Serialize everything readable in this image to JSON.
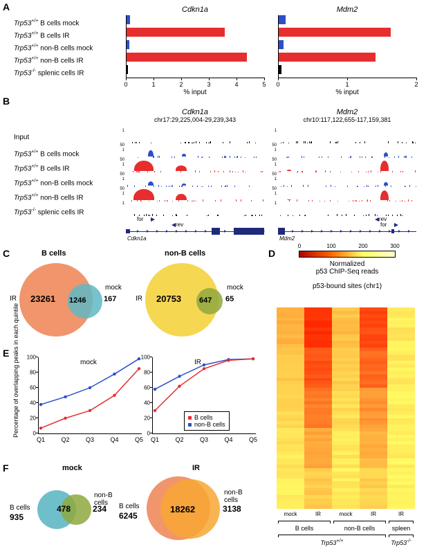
{
  "colors": {
    "red": "#e62e2e",
    "blue": "#2c4fc9",
    "darkblue": "#1f2a7a",
    "black": "#000000",
    "orange_light": "#f08a5d",
    "teal": "#5fb8c4",
    "yellow": "#f5d33f",
    "olive": "#8fa83e",
    "orange": "#f7a733",
    "hm_low": "#b30000",
    "hm_mid": "#ff6600",
    "hm_high": "#ffff66"
  },
  "panelA": {
    "row_labels": [
      "<i>Trp53</i><sup>+/+</sup> B cells mock",
      "<i>Trp53</i><sup>+/+</sup> B cells IR",
      "<i>Trp53</i><sup>+/+</sup> non-B cells mock",
      "<i>Trp53</i><sup>+/+</sup> non-B cells IR",
      "<i>Trp53</i><sup>-/-</sup> splenic cells IR"
    ],
    "charts": [
      {
        "title": "Cdkn1a",
        "xmax": 5,
        "xstep": 1,
        "xlabel": "% input",
        "values": [
          0.12,
          3.55,
          0.1,
          4.35,
          0.04
        ],
        "bar_colors": [
          "#2c4fc9",
          "#e62e2e",
          "#2c4fc9",
          "#e62e2e",
          "#000000"
        ]
      },
      {
        "title": "Mdm2",
        "xmax": 2,
        "xstep": 1,
        "xlabel": "% input",
        "values": [
          0.1,
          1.62,
          0.07,
          1.4,
          0.04
        ],
        "bar_colors": [
          "#2c4fc9",
          "#e62e2e",
          "#2c4fc9",
          "#e62e2e",
          "#000000"
        ]
      }
    ]
  },
  "panelB": {
    "row_labels": [
      "Input",
      "<i>Trp53</i><sup>+/+</sup> B cells mock",
      "<i>Trp53</i><sup>+/+</sup> B cells IR",
      "<i>Trp53</i><sup>+/+</sup> non-B cells mock",
      "<i>Trp53</i><sup>+/+</sup> non-B cells IR",
      "<i>Trp53</i><sup>-/-</sup> splenic cells IR"
    ],
    "cols": [
      {
        "title": "Cdkn1a",
        "coord": "chr17:29,225,004-29,239,343",
        "gene": "Cdkn1a",
        "track_colors": [
          "#000000",
          "#2c4fc9",
          "#e62e2e",
          "#2c4fc9",
          "#e62e2e",
          "#000000"
        ],
        "scales": [
          "1",
          "50",
          "50",
          "50",
          "50",
          "1"
        ],
        "scales_low": [
          "",
          "1",
          "1",
          "1",
          "1",
          ""
        ],
        "peaks": [
          [],
          [
            {
              "x": 0.18,
              "h": 0.55,
              "w": 0.04
            },
            {
              "x": 0.42,
              "h": 0.22,
              "w": 0.03
            }
          ],
          [
            {
              "x": 0.13,
              "h": 0.9,
              "w": 0.14
            },
            {
              "x": 0.4,
              "h": 0.45,
              "w": 0.08
            }
          ],
          [
            {
              "x": 0.18,
              "h": 0.35,
              "w": 0.04
            },
            {
              "x": 0.42,
              "h": 0.15,
              "w": 0.03
            }
          ],
          [
            {
              "x": 0.13,
              "h": 0.95,
              "w": 0.15
            },
            {
              "x": 0.4,
              "h": 0.55,
              "w": 0.08
            }
          ],
          []
        ],
        "arrows": [
          {
            "label": "for",
            "x": 0.18,
            "dir": "r"
          },
          {
            "label": "rev",
            "x": 0.33,
            "dir": "l"
          }
        ],
        "exons": [
          {
            "x": 0.0,
            "w": 0.03,
            "h": 6
          },
          {
            "x": 0.62,
            "w": 0.06,
            "h": 10
          },
          {
            "x": 0.78,
            "w": 0.22,
            "h": 10
          }
        ],
        "intron": {
          "x": 0.03,
          "w": 0.97
        }
      },
      {
        "title": "Mdm2",
        "coord": "chr10:117,122,655-117,159,381",
        "gene": "Mdm2",
        "track_colors": [
          "#000000",
          "#2c4fc9",
          "#e62e2e",
          "#2c4fc9",
          "#e62e2e",
          "#000000"
        ],
        "scales": [
          "1",
          "50",
          "50",
          "50",
          "50",
          "1"
        ],
        "scales_low": [
          "",
          "1",
          "1",
          "1",
          "1",
          ""
        ],
        "peaks": [
          [],
          [
            {
              "x": 0.78,
              "h": 0.35,
              "w": 0.03
            }
          ],
          [
            {
              "x": 0.77,
              "h": 0.9,
              "w": 0.06
            },
            {
              "x": 0.08,
              "h": 0.1,
              "w": 0.03
            }
          ],
          [
            {
              "x": 0.78,
              "h": 0.28,
              "w": 0.03
            }
          ],
          [
            {
              "x": 0.77,
              "h": 0.85,
              "w": 0.06
            },
            {
              "x": 0.08,
              "h": 0.08,
              "w": 0.03
            }
          ],
          []
        ],
        "arrows": [
          {
            "label": "rev",
            "x": 0.7,
            "dir": "l"
          },
          {
            "label": "for",
            "x": 0.84,
            "dir": "r"
          }
        ],
        "exons": [
          {
            "x": 0.0,
            "w": 0.05,
            "h": 10
          },
          {
            "x": 0.82,
            "w": 0.02,
            "h": 6
          }
        ],
        "intron": {
          "x": 0.05,
          "w": 0.95
        }
      }
    ]
  },
  "panelC": {
    "title_b": "B cells",
    "title_nb": "non-B cells",
    "venn_b": {
      "ir": "23261",
      "overlap": "1246",
      "mock": "167",
      "ir_label": "IR",
      "mock_label": "mock"
    },
    "venn_nb": {
      "ir": "20753",
      "overlap": "647",
      "mock": "65",
      "ir_label": "IR",
      "mock_label": "mock"
    }
  },
  "panelD": {
    "label": "D",
    "cb_ticks": [
      "0",
      "100",
      "200",
      "300"
    ],
    "cb_title": "Normalized\np53 ChIP-Seq reads",
    "subtitle": "p53-bound sites (chr1)",
    "cols": [
      "mock",
      "IR",
      "mock",
      "IR",
      "IR"
    ],
    "groups": [
      "B cells",
      "non-B cells",
      "spleen"
    ],
    "genotypes": [
      "Trp53<sup>+/+</sup>",
      "Trp53<sup>-/-</sup>"
    ]
  },
  "panelE": {
    "ylabel": "Percentage of overlapping\npeaks in each quintile",
    "charts": [
      {
        "title": "mock",
        "xticks": [
          "Q1",
          "Q2",
          "Q3",
          "Q4",
          "Q5"
        ],
        "yticks": [
          0,
          20,
          40,
          60,
          80,
          100
        ],
        "series": {
          "b": [
            7,
            20,
            30,
            50,
            85
          ],
          "nb": [
            38,
            48,
            60,
            78,
            98
          ]
        }
      },
      {
        "title": "IR",
        "xticks": [
          "Q1",
          "Q2",
          "Q3",
          "Q4",
          "Q5"
        ],
        "yticks": [
          0,
          20,
          40,
          60,
          80,
          100
        ],
        "series": {
          "b": [
            30,
            62,
            85,
            96,
            98
          ],
          "nb": [
            58,
            75,
            90,
            97,
            98
          ]
        }
      }
    ],
    "legend": {
      "b": "B cells",
      "nb": "non-B cells"
    }
  },
  "panelF": {
    "mock": {
      "title": "mock",
      "b": "935",
      "overlap": "478",
      "nb": "234",
      "b_label": "B cells",
      "nb_label": "non-B\ncells"
    },
    "ir": {
      "title": "IR",
      "b": "6245",
      "overlap": "18262",
      "nb": "3138",
      "b_label": "B cells",
      "nb_label": "non-B\ncells"
    }
  }
}
